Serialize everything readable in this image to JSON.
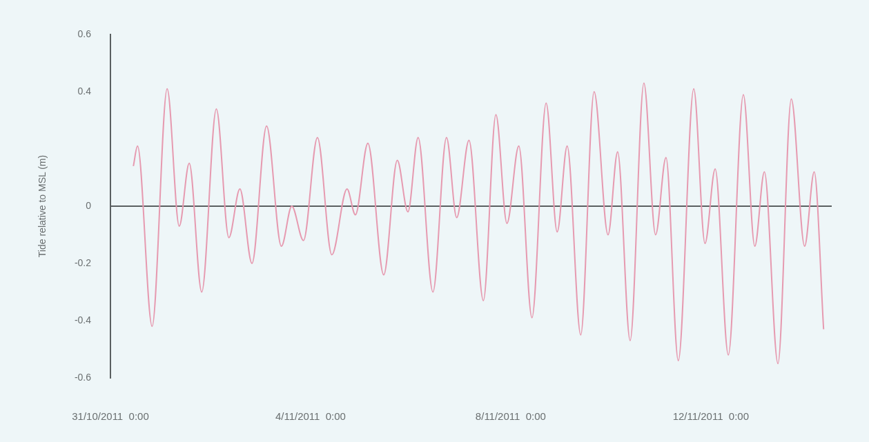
{
  "chart_data": {
    "type": "line",
    "ylabel": "Tide relative to MSL (m)",
    "x": [
      "2011-10-31T11:00",
      "2011-10-31T13:00",
      "2011-10-31T20:00",
      "2011-11-01T03:12",
      "2011-11-01T09:00",
      "2011-11-01T13:48",
      "2011-11-01T19:48",
      "2011-11-02T02:48",
      "2011-11-02T08:48",
      "2011-11-02T14:06",
      "2011-11-02T19:54",
      "2011-11-03T02:54",
      "2011-11-03T10:00",
      "2011-11-03T15:00",
      "2011-11-03T20:36",
      "2011-11-04T03:18",
      "2011-11-04T10:12",
      "2011-11-04T17:30",
      "2011-11-04T21:30",
      "2011-11-05T03:30",
      "2011-11-05T11:06",
      "2011-11-05T17:36",
      "2011-11-05T22:42",
      "2011-11-06T03:36",
      "2011-11-06T10:42",
      "2011-11-06T17:12",
      "2011-11-06T22:06",
      "2011-11-07T04:00",
      "2011-11-07T10:54",
      "2011-11-07T16:54",
      "2011-11-07T22:12",
      "2011-11-08T03:54",
      "2011-11-08T10:12",
      "2011-11-08T17:00",
      "2011-11-08T22:18",
      "2011-11-09T03:06",
      "2011-11-09T09:36",
      "2011-11-09T16:00",
      "2011-11-09T22:42",
      "2011-11-10T03:18",
      "2011-11-10T09:18",
      "2011-11-10T15:54",
      "2011-11-10T21:30",
      "2011-11-11T02:30",
      "2011-11-11T08:24",
      "2011-11-11T15:48",
      "2011-11-11T21:12",
      "2011-11-12T02:06",
      "2011-11-12T08:24",
      "2011-11-12T15:36",
      "2011-11-12T21:06",
      "2011-11-13T01:42",
      "2011-11-13T08:12",
      "2011-11-13T14:36",
      "2011-11-13T21:00",
      "2011-11-14T01:36",
      "2011-11-14T06:06"
    ],
    "series": [
      {
        "color": "#e69ab0",
        "values": [
          0.14,
          0.21,
          -0.42,
          0.41,
          -0.07,
          0.15,
          -0.3,
          0.34,
          -0.11,
          0.06,
          -0.2,
          0.28,
          -0.14,
          0,
          -0.12,
          0.24,
          -0.17,
          0.06,
          -0.03,
          0.22,
          -0.24,
          0.16,
          -0.02,
          0.24,
          -0.3,
          0.24,
          -0.04,
          0.23,
          -0.33,
          0.32,
          -0.06,
          0.21,
          -0.39,
          0.36,
          -0.09,
          0.21,
          -0.45,
          0.4,
          -0.1,
          0.19,
          -0.47,
          0.43,
          -0.1,
          0.17,
          -0.54,
          0.41,
          -0.13,
          0.13,
          -0.52,
          0.39,
          -0.14,
          0.12,
          -0.55,
          0.375,
          -0.14,
          0.12,
          -0.43
        ]
      }
    ],
    "xlim": [
      "2011-10-31T00:00",
      "2011-11-14T10:00"
    ],
    "xticks": [
      {
        "value": "2011-10-31T00:00",
        "label": "31/10/2011  0:00"
      },
      {
        "value": "2011-11-04T00:00",
        "label": "4/11/2011  0:00"
      },
      {
        "value": "2011-11-08T00:00",
        "label": "8/11/2011  0:00"
      },
      {
        "value": "2011-11-12T00:00",
        "label": "12/11/2011  0:00"
      }
    ],
    "ylim": [
      -0.6,
      0.6
    ],
    "yticks": [
      -0.6,
      -0.4,
      -0.2,
      0,
      0.4,
      0.6
    ],
    "ref_lines": [
      {
        "axis": "y",
        "value": 0,
        "color": "#5a5f60"
      }
    ],
    "grid": false,
    "legend": false,
    "marker": "none",
    "line_style": "solid"
  }
}
